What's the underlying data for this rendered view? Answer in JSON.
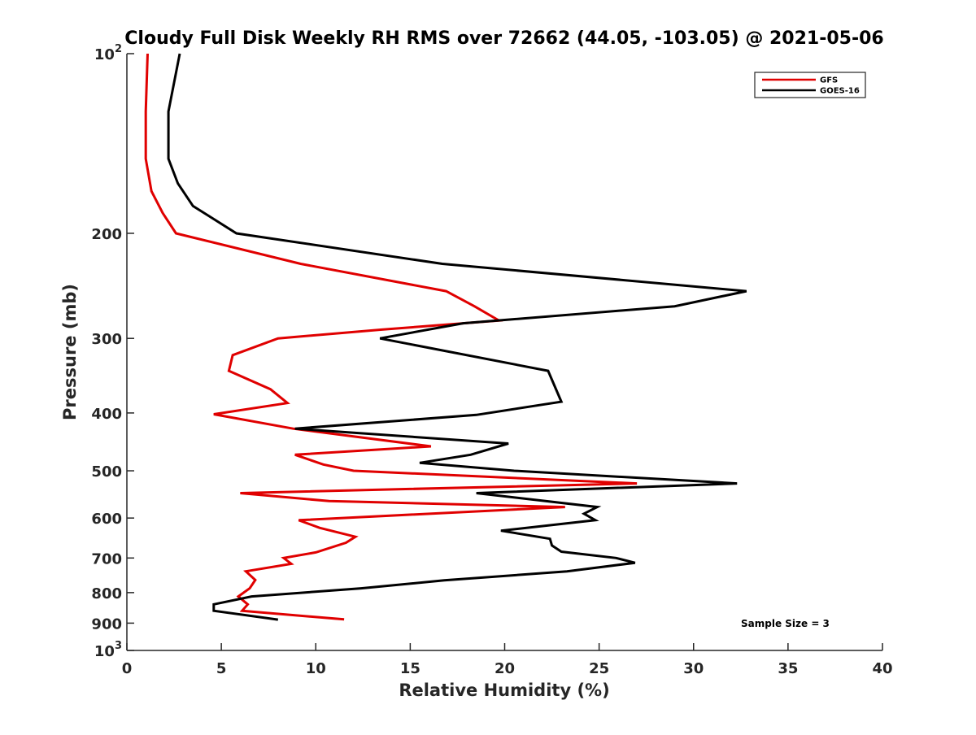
{
  "chart_data": {
    "type": "line",
    "title": "Cloudy Full Disk Weekly RH RMS over 72662 (44.05, -103.05) @ 2021-05-06",
    "xlabel": "Relative Humidity (%)",
    "ylabel": "Pressure (mb)",
    "xlim": [
      0,
      40
    ],
    "ylim": [
      100,
      1000
    ],
    "yscale": "log",
    "y_reversed": true,
    "x_ticks": [
      0,
      5,
      10,
      15,
      20,
      25,
      30,
      35,
      40
    ],
    "x_tick_labels": [
      "0",
      "5",
      "10",
      "15",
      "20",
      "25",
      "30",
      "35",
      "40"
    ],
    "y_ticks": [
      100,
      200,
      300,
      400,
      500,
      600,
      700,
      800,
      900,
      1000
    ],
    "y_tick_labels": [
      {
        "base": "10",
        "exp": "2"
      },
      {
        "base": "200",
        "exp": ""
      },
      {
        "base": "300",
        "exp": ""
      },
      {
        "base": "400",
        "exp": ""
      },
      {
        "base": "500",
        "exp": ""
      },
      {
        "base": "600",
        "exp": ""
      },
      {
        "base": "700",
        "exp": ""
      },
      {
        "base": "800",
        "exp": ""
      },
      {
        "base": "900",
        "exp": ""
      },
      {
        "base": "10",
        "exp": "3"
      }
    ],
    "grid": false,
    "legend_position": "top-right",
    "annotation": "Sample Size = 3",
    "series": [
      {
        "name": "GFS",
        "color": "#e00000",
        "points": [
          [
            1.1,
            100
          ],
          [
            1.0,
            125
          ],
          [
            1.0,
            150
          ],
          [
            1.3,
            170
          ],
          [
            1.9,
            185
          ],
          [
            2.6,
            200
          ],
          [
            9.2,
            225
          ],
          [
            16.9,
            250
          ],
          [
            18.4,
            265
          ],
          [
            19.7,
            280
          ],
          [
            13.5,
            290
          ],
          [
            8.0,
            300
          ],
          [
            5.6,
            320
          ],
          [
            5.4,
            340
          ],
          [
            7.6,
            365
          ],
          [
            8.5,
            385
          ],
          [
            4.6,
            402
          ],
          [
            8.8,
            425
          ],
          [
            16.1,
            455
          ],
          [
            8.9,
            470
          ],
          [
            10.4,
            488
          ],
          [
            12.0,
            500
          ],
          [
            27.0,
            525
          ],
          [
            6.0,
            545
          ],
          [
            10.7,
            562
          ],
          [
            23.2,
            575
          ],
          [
            9.1,
            605
          ],
          [
            10.2,
            623
          ],
          [
            12.1,
            645
          ],
          [
            11.6,
            660
          ],
          [
            10.0,
            685
          ],
          [
            8.3,
            700
          ],
          [
            8.7,
            716
          ],
          [
            6.3,
            737
          ],
          [
            6.8,
            762
          ],
          [
            6.5,
            787
          ],
          [
            5.9,
            812
          ],
          [
            6.4,
            837
          ],
          [
            6.1,
            858
          ],
          [
            11.5,
            887
          ]
        ]
      },
      {
        "name": "GOES-16",
        "color": "#000000",
        "points": [
          [
            2.8,
            100
          ],
          [
            2.2,
            125
          ],
          [
            2.2,
            150
          ],
          [
            2.7,
            165
          ],
          [
            3.5,
            180
          ],
          [
            5.8,
            200
          ],
          [
            16.7,
            225
          ],
          [
            32.8,
            250
          ],
          [
            29.0,
            265
          ],
          [
            17.8,
            283
          ],
          [
            13.4,
            300
          ],
          [
            22.3,
            340
          ],
          [
            23.0,
            383
          ],
          [
            18.5,
            403
          ],
          [
            8.9,
            425
          ],
          [
            20.2,
            450
          ],
          [
            18.2,
            470
          ],
          [
            15.5,
            485
          ],
          [
            20.5,
            500
          ],
          [
            32.3,
            525
          ],
          [
            18.5,
            545
          ],
          [
            24.9,
            575
          ],
          [
            24.2,
            590
          ],
          [
            24.8,
            605
          ],
          [
            19.8,
            630
          ],
          [
            22.4,
            650
          ],
          [
            22.5,
            667
          ],
          [
            23.0,
            683
          ],
          [
            25.9,
            700
          ],
          [
            26.9,
            713
          ],
          [
            23.3,
            737
          ],
          [
            16.8,
            763
          ],
          [
            12.4,
            787
          ],
          [
            6.6,
            812
          ],
          [
            4.6,
            837
          ],
          [
            4.6,
            858
          ],
          [
            8.0,
            888
          ]
        ]
      }
    ]
  }
}
